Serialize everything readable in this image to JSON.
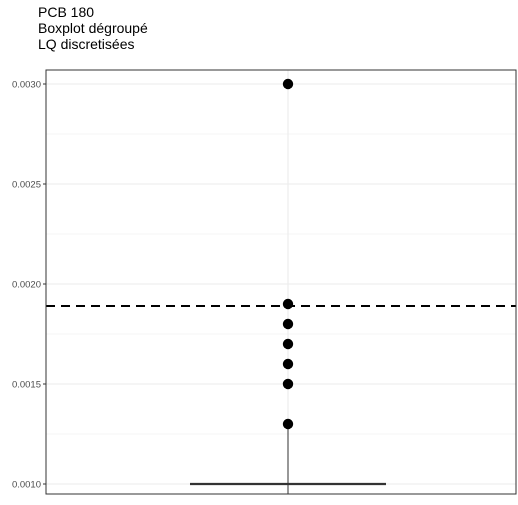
{
  "chart_data": {
    "type": "boxplot",
    "title_lines": [
      "PCB 180",
      " Boxplot dégroupé",
      " LQ discretisées"
    ],
    "xlabel": "",
    "ylabel": "",
    "ylim": [
      0.00095,
      0.00307
    ],
    "y_ticks": [
      {
        "value": 0.001,
        "label": "0.0010"
      },
      {
        "value": 0.0015,
        "label": "0.0015"
      },
      {
        "value": 0.002,
        "label": "0.0020"
      },
      {
        "value": 0.0025,
        "label": "0.0025"
      },
      {
        "value": 0.003,
        "label": "0.0030"
      }
    ],
    "box": {
      "min": 0.001,
      "q1": 0.001,
      "median": 0.001,
      "q3": 0.001,
      "whisker_high": 0.0013
    },
    "points": [
      0.003,
      0.0019,
      0.0018,
      0.0017,
      0.0016,
      0.0015,
      0.0013
    ],
    "reference_line": {
      "y": 0.00189,
      "style": "dashed"
    },
    "grid": true,
    "theme": "bw",
    "colors": {
      "point": "#000000",
      "grid": "#ebebeb",
      "border": "#333333",
      "reference": "#000000"
    }
  }
}
